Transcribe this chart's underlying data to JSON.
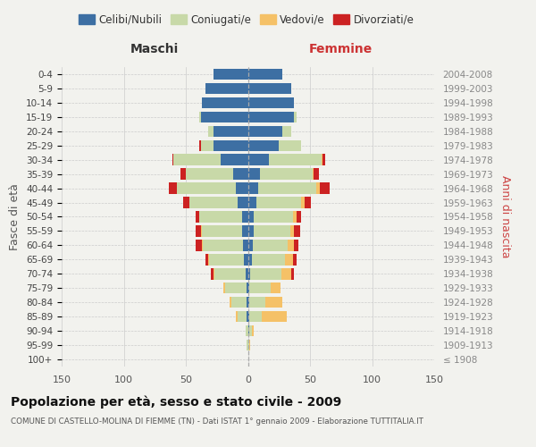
{
  "age_groups": [
    "100+",
    "95-99",
    "90-94",
    "85-89",
    "80-84",
    "75-79",
    "70-74",
    "65-69",
    "60-64",
    "55-59",
    "50-54",
    "45-49",
    "40-44",
    "35-39",
    "30-34",
    "25-29",
    "20-24",
    "15-19",
    "10-14",
    "5-9",
    "0-4"
  ],
  "birth_years": [
    "≤ 1908",
    "1909-1913",
    "1914-1918",
    "1919-1923",
    "1924-1928",
    "1929-1933",
    "1934-1938",
    "1939-1943",
    "1944-1948",
    "1949-1953",
    "1954-1958",
    "1959-1963",
    "1964-1968",
    "1969-1973",
    "1974-1978",
    "1979-1983",
    "1984-1988",
    "1989-1993",
    "1994-1998",
    "1999-2003",
    "2004-2008"
  ],
  "male_celibi": [
    0,
    0,
    0,
    1,
    1,
    1,
    2,
    3,
    4,
    5,
    5,
    8,
    10,
    12,
    22,
    28,
    28,
    38,
    37,
    34,
    28
  ],
  "male_coniugati": [
    0,
    1,
    2,
    7,
    12,
    17,
    25,
    28,
    32,
    32,
    34,
    39,
    47,
    38,
    38,
    10,
    4,
    1,
    0,
    0,
    0
  ],
  "male_vedovi": [
    0,
    0,
    0,
    2,
    2,
    2,
    1,
    1,
    1,
    1,
    0,
    0,
    0,
    0,
    0,
    0,
    0,
    0,
    0,
    0,
    0
  ],
  "male_divorziati": [
    0,
    0,
    0,
    0,
    0,
    0,
    2,
    2,
    5,
    4,
    3,
    5,
    7,
    4,
    1,
    1,
    0,
    0,
    0,
    0,
    0
  ],
  "fem_nubili": [
    0,
    0,
    1,
    1,
    1,
    1,
    2,
    3,
    4,
    5,
    5,
    7,
    8,
    10,
    17,
    25,
    28,
    37,
    37,
    35,
    28
  ],
  "fem_coniugate": [
    0,
    1,
    2,
    10,
    13,
    17,
    25,
    27,
    28,
    29,
    31,
    36,
    47,
    42,
    42,
    18,
    7,
    2,
    0,
    0,
    0
  ],
  "fem_vedove": [
    0,
    1,
    2,
    20,
    14,
    8,
    8,
    6,
    5,
    3,
    3,
    3,
    3,
    1,
    1,
    0,
    0,
    0,
    0,
    0,
    0
  ],
  "fem_divorziate": [
    0,
    0,
    0,
    0,
    0,
    0,
    2,
    3,
    4,
    5,
    4,
    5,
    8,
    4,
    2,
    0,
    0,
    0,
    0,
    0,
    0
  ],
  "bar_color_celibi": "#3d6fa3",
  "bar_color_coniugati": "#c8d9a8",
  "bar_color_vedovi": "#f5c167",
  "bar_color_divorziati": "#cc2222",
  "bg_color": "#f2f2ee",
  "xlim": 150,
  "header_left": "Maschi",
  "header_right": "Femmine",
  "ylabel_left": "Fasce di età",
  "ylabel_right": "Anni di nascita",
  "title": "Popolazione per età, sesso e stato civile - 2009",
  "subtitle": "COMUNE DI CASTELLO-MOLINA DI FIEMME (TN) - Dati ISTAT 1° gennaio 2009 - Elaborazione TUTTITALIA.IT",
  "legend_labels": [
    "Celibi/Nubili",
    "Coniugati/e",
    "Vedovi/e",
    "Divorziati/e"
  ],
  "xtick_positions": [
    -150,
    -100,
    -50,
    0,
    50,
    100,
    150
  ],
  "xtick_labels": [
    "150",
    "100",
    "50",
    "0",
    "50",
    "100",
    "150"
  ]
}
